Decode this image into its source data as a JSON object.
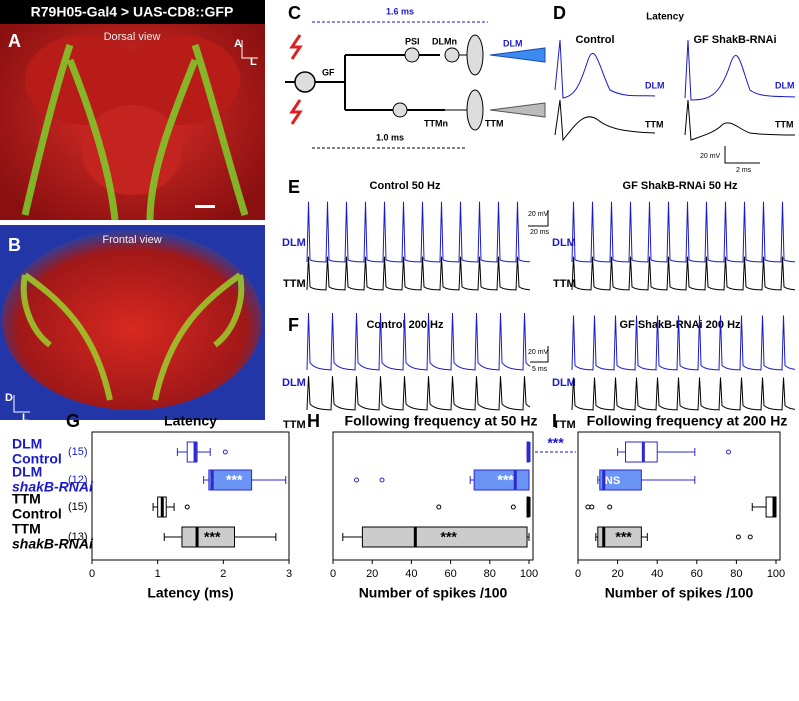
{
  "panels": {
    "A": {
      "letter": "A",
      "title": "R79H05-Gal4 > UAS-CD8::GFP",
      "view": "Dorsal view",
      "axis_up": "A",
      "axis_right": "L"
    },
    "B": {
      "letter": "B",
      "view": "Frontal view",
      "axis_up": "D",
      "axis_right": "L"
    },
    "C": {
      "letter": "C",
      "top_time": "1.6 ms",
      "bottom_time": "1.0 ms",
      "gf": "GF",
      "psi": "PSI",
      "dlmn": "DLMn",
      "dlm": "DLM",
      "ttmn": "TTMn",
      "ttm": "TTM"
    },
    "D": {
      "letter": "D",
      "title": "Latency",
      "control": "Control",
      "rnai": "GF ShakB-RNAi",
      "dlm": "DLM",
      "ttm": "TTM",
      "scale_v": "20 mV",
      "scale_t": "2 ms"
    },
    "E": {
      "letter": "E",
      "control": "Control 50 Hz",
      "rnai": "GF ShakB-RNAi 50 Hz",
      "scale_v": "20 mV",
      "scale_t": "20 ms",
      "dlm": "DLM",
      "ttm": "TTM"
    },
    "F": {
      "letter": "F",
      "control": "Control 200 Hz",
      "rnai": "GF ShakB-RNAi 200 Hz",
      "scale_v": "20 mV",
      "scale_t": "5 ms",
      "dlm": "DLM",
      "ttm": "TTM"
    }
  },
  "chart_data": [
    {
      "type": "box",
      "letter": "G",
      "title": "Latency",
      "xlabel": "Latency (ms)",
      "xlim": [
        0,
        3
      ],
      "xticks": [
        0,
        1,
        2,
        3
      ],
      "categories": [
        [
          "DLM",
          "Control"
        ],
        [
          "DLM",
          "shakB-RNAi"
        ],
        [
          "TTM",
          "Control"
        ],
        [
          "TTM",
          "shakB-RNAi"
        ]
      ],
      "n_labels": [
        "(15)",
        "(12)",
        "(15)",
        "(13)"
      ],
      "boxes": [
        {
          "whislo": 1.3,
          "q1": 1.45,
          "med": 1.57,
          "q3": 1.6,
          "whishi": 1.8,
          "fliers": [
            2.03
          ],
          "color": "#2a2ad0",
          "fill": "#ffffff"
        },
        {
          "whislo": 1.7,
          "q1": 1.78,
          "med": 1.83,
          "q3": 2.43,
          "whishi": 2.95,
          "fliers": [],
          "color": "#2a2ad0",
          "fill": "#6b94f5",
          "stat": "***"
        },
        {
          "whislo": 0.93,
          "q1": 1.0,
          "med": 1.07,
          "q3": 1.13,
          "whishi": 1.25,
          "fliers": [
            1.45
          ],
          "color": "#000000",
          "fill": "#ffffff"
        },
        {
          "whislo": 1.1,
          "q1": 1.37,
          "med": 1.6,
          "q3": 2.17,
          "whishi": 2.8,
          "fliers": [],
          "color": "#000000",
          "fill": "#cccccc",
          "stat": "***"
        }
      ]
    },
    {
      "type": "box",
      "letter": "H",
      "title": "Following frequency at 50 Hz",
      "xlabel": "Number of spikes /100",
      "xlim": [
        0,
        100
      ],
      "xticks": [
        0,
        20,
        40,
        60,
        80,
        100
      ],
      "bracket_label": "***",
      "boxes": [
        {
          "whislo": 99,
          "q1": 99,
          "med": 100,
          "q3": 100,
          "whishi": 100,
          "fliers": [],
          "color": "#2a2ad0",
          "fill": "#ffffff"
        },
        {
          "whislo": 70,
          "q1": 72,
          "med": 93,
          "q3": 100,
          "whishi": 100,
          "fliers": [
            12,
            25
          ],
          "color": "#2a2ad0",
          "fill": "#6b94f5",
          "stat": "***"
        },
        {
          "whislo": 99,
          "q1": 99,
          "med": 100,
          "q3": 100,
          "whishi": 100,
          "fliers": [
            54,
            92
          ],
          "color": "#000000",
          "fill": "#ffffff"
        },
        {
          "whislo": 5,
          "q1": 15,
          "med": 42,
          "q3": 99,
          "whishi": 100,
          "fliers": [],
          "color": "#000000",
          "fill": "#cccccc",
          "stat": "***"
        }
      ]
    },
    {
      "type": "box",
      "letter": "I",
      "title": "Following frequency at 200 Hz",
      "xlabel": "Number of spikes /100",
      "xlim": [
        0,
        100
      ],
      "xticks": [
        0,
        20,
        40,
        60,
        80,
        100
      ],
      "boxes": [
        {
          "whislo": 20,
          "q1": 24,
          "med": 33,
          "q3": 40,
          "whishi": 59,
          "fliers": [
            76
          ],
          "color": "#2a2ad0",
          "fill": "#ffffff"
        },
        {
          "whislo": 10,
          "q1": 11,
          "med": 13,
          "q3": 32,
          "whishi": 59,
          "fliers": [],
          "color": "#2a2ad0",
          "fill": "#6b94f5",
          "stat": "NS"
        },
        {
          "whislo": 88,
          "q1": 95,
          "med": 99,
          "q3": 100,
          "whishi": 100,
          "fliers": [
            5,
            7,
            16
          ],
          "color": "#000000",
          "fill": "#ffffff"
        },
        {
          "whislo": 9,
          "q1": 10,
          "med": 13,
          "q3": 32,
          "whishi": 35,
          "fliers": [
            81,
            87
          ],
          "color": "#000000",
          "fill": "#cccccc",
          "stat": "***"
        }
      ]
    }
  ]
}
